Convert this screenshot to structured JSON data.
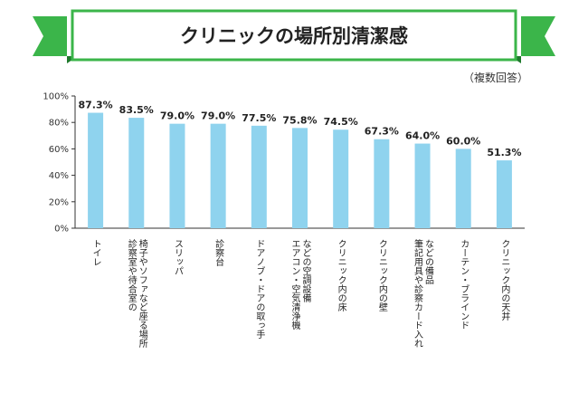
{
  "title": "クリニックの場所別清潔感",
  "note": "（複数回答）",
  "colors": {
    "bar": "#8fd3ee",
    "banner_green": "#3bb54a",
    "banner_dark_green": "#1f7a2c",
    "grid": "#dddddd",
    "axis": "#333333"
  },
  "chart_data": {
    "type": "bar",
    "title": "クリニックの場所別清潔感",
    "categories": [
      "トイレ",
      "診察室や待合室の椅子やソファなど座る場所",
      "スリッパ",
      "診察台",
      "ドアノブ・ドアの取っ手",
      "エアコン・空気清浄機などの空調設備",
      "クリニック内の床",
      "クリニック内の壁",
      "筆記用具や診察カード入れなどの備品",
      "カーテン・ブラインド",
      "クリニック内の天井"
    ],
    "values": [
      87.3,
      83.5,
      79.0,
      79.0,
      77.5,
      75.8,
      74.5,
      67.3,
      64.0,
      60.0,
      51.3
    ],
    "value_labels": [
      "87.3%",
      "83.5%",
      "79.0%",
      "79.0%",
      "77.5%",
      "75.8%",
      "74.5%",
      "67.3%",
      "64.0%",
      "60.0%",
      "51.3%"
    ],
    "y_ticks": [
      "0%",
      "20%",
      "40%",
      "60%",
      "80%",
      "100%"
    ],
    "y_tick_values": [
      0,
      20,
      40,
      60,
      80,
      100
    ],
    "ylim": [
      0,
      100
    ],
    "grid": false,
    "label_lines": [
      [
        "トイレ"
      ],
      [
        "診察室や待合室の",
        "椅子やソファなど座る場所"
      ],
      [
        "スリッパ"
      ],
      [
        "診察台"
      ],
      [
        "ドアノブ・ドアの取っ手"
      ],
      [
        "エアコン・空気清浄機",
        "などの空調設備"
      ],
      [
        "クリニック内の床"
      ],
      [
        "クリニック内の壁"
      ],
      [
        "筆記用具や診察カード入れ",
        "などの備品"
      ],
      [
        "カーテン・ブラインド"
      ],
      [
        "クリニック内の天井"
      ]
    ]
  }
}
